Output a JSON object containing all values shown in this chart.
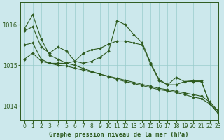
{
  "title": "Graphe pression niveau de la mer (hPa)",
  "bg_color": "#cce8ec",
  "grid_color": "#99cccc",
  "line_color": "#2d5a1e",
  "xlim": [
    -0.5,
    23
  ],
  "ylim": [
    1013.65,
    1016.55
  ],
  "yticks": [
    1014,
    1015,
    1016
  ],
  "xticks": [
    0,
    1,
    2,
    3,
    4,
    5,
    6,
    7,
    8,
    9,
    10,
    11,
    12,
    13,
    14,
    15,
    16,
    17,
    18,
    19,
    20,
    21,
    22,
    23
  ],
  "series": [
    {
      "y": [
        1015.9,
        1016.25,
        1015.65,
        1015.25,
        1015.15,
        1015.05,
        1015.0,
        1014.92,
        1014.85,
        1014.78,
        1014.72,
        1014.65,
        1014.6,
        1014.55,
        1014.5,
        1014.45,
        1014.4,
        1014.37,
        1014.33,
        1014.28,
        1014.22,
        1014.18,
        1014.05,
        1013.88
      ],
      "marker": "D",
      "lw": 0.8,
      "ms": 1.8
    },
    {
      "y": [
        1015.15,
        1015.3,
        1015.1,
        1015.05,
        1015.0,
        1014.98,
        1014.93,
        1014.88,
        1014.83,
        1014.78,
        1014.73,
        1014.68,
        1014.63,
        1014.58,
        1014.53,
        1014.48,
        1014.43,
        1014.4,
        1014.36,
        1014.32,
        1014.28,
        1014.24,
        1014.1,
        1013.88
      ],
      "marker": "D",
      "lw": 0.8,
      "ms": 1.8
    },
    {
      "y": [
        1015.85,
        1015.95,
        1015.45,
        1015.3,
        1015.45,
        1015.35,
        1015.1,
        1015.05,
        1015.1,
        1015.2,
        1015.35,
        1016.1,
        1016.0,
        1015.75,
        1015.55,
        1015.05,
        1014.65,
        1014.52,
        1014.7,
        1014.6,
        1014.62,
        1014.62,
        1014.05,
        1013.82
      ],
      "marker": "D",
      "lw": 0.8,
      "ms": 1.8
    },
    {
      "y": [
        1015.5,
        1015.55,
        1015.15,
        1015.05,
        1015.05,
        1015.05,
        1015.1,
        1015.3,
        1015.38,
        1015.42,
        1015.52,
        1015.6,
        1015.6,
        1015.55,
        1015.5,
        1015.02,
        1014.62,
        1014.52,
        1014.52,
        1014.6,
        1014.6,
        1014.6,
        1014.07,
        1013.82
      ],
      "marker": "D",
      "lw": 0.8,
      "ms": 1.8
    }
  ],
  "ylabel_fontsize": 5.5,
  "xlabel_fontsize": 6.2,
  "tick_fontsize": 5.5,
  "figsize": [
    3.2,
    2.0
  ],
  "dpi": 100
}
